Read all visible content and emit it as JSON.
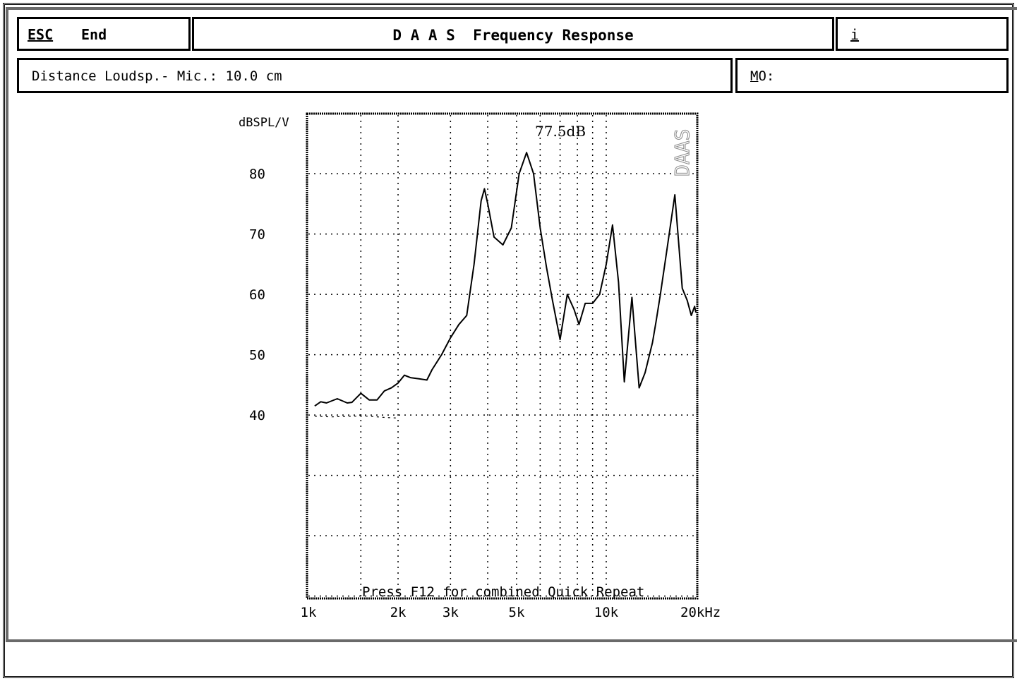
{
  "header": {
    "esc_label": "ESC",
    "end_label": "End",
    "title": "D A A S  Frequency Response",
    "info_label": "i"
  },
  "measurement": {
    "distance_text": "Distance Loudsp.- Mic.: 10.0 cm",
    "mo_label_ul": "M",
    "mo_label_rest": "O:"
  },
  "chart_data": {
    "type": "line",
    "title": "",
    "ylabel": "dBSPL/V",
    "xlabel": "",
    "xscale": "log",
    "xlim": [
      1000,
      20000
    ],
    "ylim": [
      0,
      85
    ],
    "grid": true,
    "x_tick_labels": [
      "1k",
      "2k",
      "3k",
      "5k",
      "10k",
      "20kHz"
    ],
    "x_tick_values": [
      1000,
      2000,
      3000,
      5000,
      10000,
      20000
    ],
    "y_tick_labels": [
      "80",
      "70",
      "60",
      "50",
      "40"
    ],
    "y_tick_values": [
      80,
      70,
      60,
      50,
      40
    ],
    "annotation": "77.5dB",
    "bottom_note": "Press F12 for combined Quick Repeat",
    "brand": "DAAS",
    "series": [
      {
        "color": "#000000",
        "x": [
          1050,
          1100,
          1150,
          1250,
          1350,
          1400,
          1500,
          1600,
          1700,
          1800,
          1900,
          2000,
          2100,
          2200,
          2350,
          2500,
          2600,
          2800,
          3000,
          3200,
          3400,
          3600,
          3800,
          3900,
          4000,
          4200,
          4500,
          4800,
          5100,
          5400,
          5700,
          6000,
          6300,
          6600,
          7000,
          7400,
          7800,
          8100,
          8500,
          9000,
          9500,
          10000,
          10500,
          11000,
          11500,
          12200,
          12900,
          13500,
          14300,
          14700,
          15200,
          16000,
          17000,
          18000,
          18700,
          19300,
          19800,
          20000
        ],
        "y": [
          41.5,
          42.2,
          42.0,
          42.7,
          42.0,
          42.1,
          43.6,
          42.5,
          42.5,
          44.0,
          44.5,
          45.3,
          46.6,
          46.2,
          46.0,
          45.8,
          47.5,
          50.0,
          52.8,
          55.0,
          56.5,
          65.0,
          75.5,
          77.5,
          75.0,
          69.5,
          68.2,
          71.0,
          80.0,
          83.5,
          80.0,
          71.0,
          64.5,
          59.0,
          52.5,
          60.0,
          57.5,
          55.0,
          58.5,
          58.5,
          60.0,
          65.0,
          71.5,
          62.0,
          45.5,
          59.5,
          44.5,
          47.0,
          52.0,
          55.5,
          60.0,
          67.5,
          76.5,
          61.0,
          59.0,
          56.5,
          58.0,
          57.0
        ]
      }
    ],
    "faint_series": {
      "x": [
        1050,
        1200,
        1400,
        1600,
        1800,
        2000
      ],
      "y": [
        39.8,
        39.7,
        39.8,
        39.8,
        39.6,
        39.5
      ]
    }
  }
}
